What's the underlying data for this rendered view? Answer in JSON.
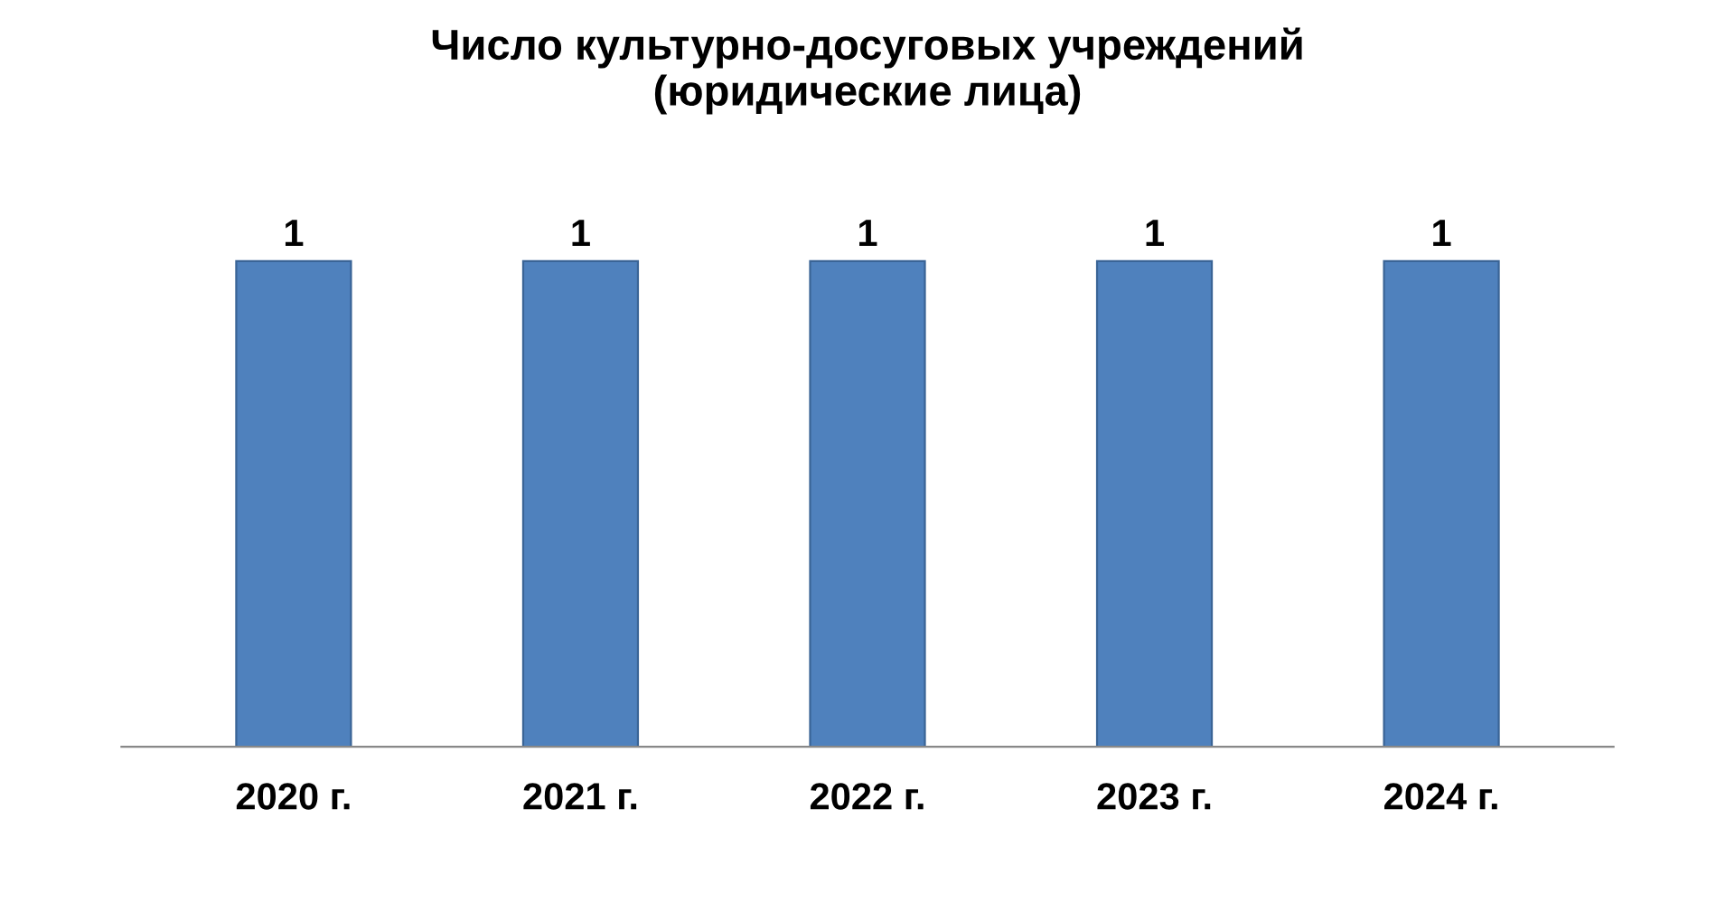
{
  "chart_data": {
    "type": "bar",
    "title": "Число культурно-досуговых учреждений\n(юридические лица)",
    "categories": [
      "2020 г.",
      "2021 г.",
      "2022 г.",
      "2023 г.",
      "2024 г."
    ],
    "values": [
      1,
      1,
      1,
      1,
      1
    ],
    "color": "#4f81bd",
    "data_labels": true,
    "grid": false,
    "legend": false
  }
}
